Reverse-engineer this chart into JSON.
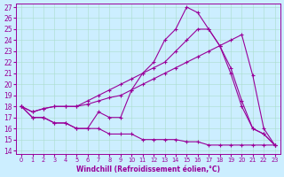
{
  "xlabel": "Windchill (Refroidissement éolien,°C)",
  "background_color": "#cceeff",
  "line_color": "#990099",
  "xlim": [
    -0.5,
    23.5
  ],
  "ylim": [
    13.7,
    27.3
  ],
  "yticks": [
    14,
    15,
    16,
    17,
    18,
    19,
    20,
    21,
    22,
    23,
    24,
    25,
    26,
    27
  ],
  "xticks": [
    0,
    1,
    2,
    3,
    4,
    5,
    6,
    7,
    8,
    9,
    10,
    11,
    12,
    13,
    14,
    15,
    16,
    17,
    18,
    19,
    20,
    21,
    22,
    23
  ],
  "series": [
    {
      "x": [
        0,
        1,
        2,
        3,
        4,
        5,
        6,
        7,
        8,
        9,
        10,
        11,
        12,
        13,
        14,
        15,
        16,
        17,
        18,
        19,
        20,
        21,
        22,
        23
      ],
      "y": [
        18,
        17,
        17,
        16.5,
        16.5,
        16,
        16,
        16,
        15.5,
        15.5,
        15.5,
        15,
        15,
        15,
        15,
        14.8,
        14.8,
        14.5,
        14.5,
        14.5,
        14.5,
        14.5,
        14.5,
        14.5
      ]
    },
    {
      "x": [
        0,
        1,
        2,
        3,
        4,
        5,
        6,
        7,
        8,
        9,
        10,
        11,
        12,
        13,
        14,
        15,
        16,
        17,
        18,
        19,
        20,
        21,
        22,
        23
      ],
      "y": [
        18,
        17.5,
        17.8,
        18,
        18,
        18,
        18.2,
        18.5,
        18.8,
        19,
        19.5,
        20,
        20.5,
        21,
        21.5,
        22,
        22.5,
        23,
        23.5,
        24,
        24.5,
        20.8,
        16,
        14.5
      ]
    },
    {
      "x": [
        0,
        1,
        2,
        3,
        4,
        5,
        6,
        7,
        8,
        9,
        10,
        11,
        12,
        13,
        14,
        15,
        16,
        17,
        18,
        19,
        20,
        21,
        22,
        23
      ],
      "y": [
        18,
        17.5,
        17.8,
        18,
        18,
        18,
        18.5,
        19,
        19.5,
        20,
        20.5,
        21,
        21.5,
        22,
        23,
        24,
        25,
        25,
        23.5,
        21.5,
        18.5,
        16,
        15.5,
        14.5
      ]
    },
    {
      "x": [
        0,
        1,
        2,
        3,
        4,
        5,
        6,
        7,
        8,
        9,
        10,
        11,
        12,
        13,
        14,
        15,
        16,
        17,
        18,
        19,
        20,
        21,
        22,
        23
      ],
      "y": [
        18,
        17,
        17,
        16.5,
        16.5,
        16,
        16,
        17.5,
        17,
        17,
        19.5,
        21,
        22,
        24,
        25,
        27,
        26.5,
        25,
        23.5,
        21,
        18,
        16,
        15.5,
        14.5
      ]
    }
  ]
}
